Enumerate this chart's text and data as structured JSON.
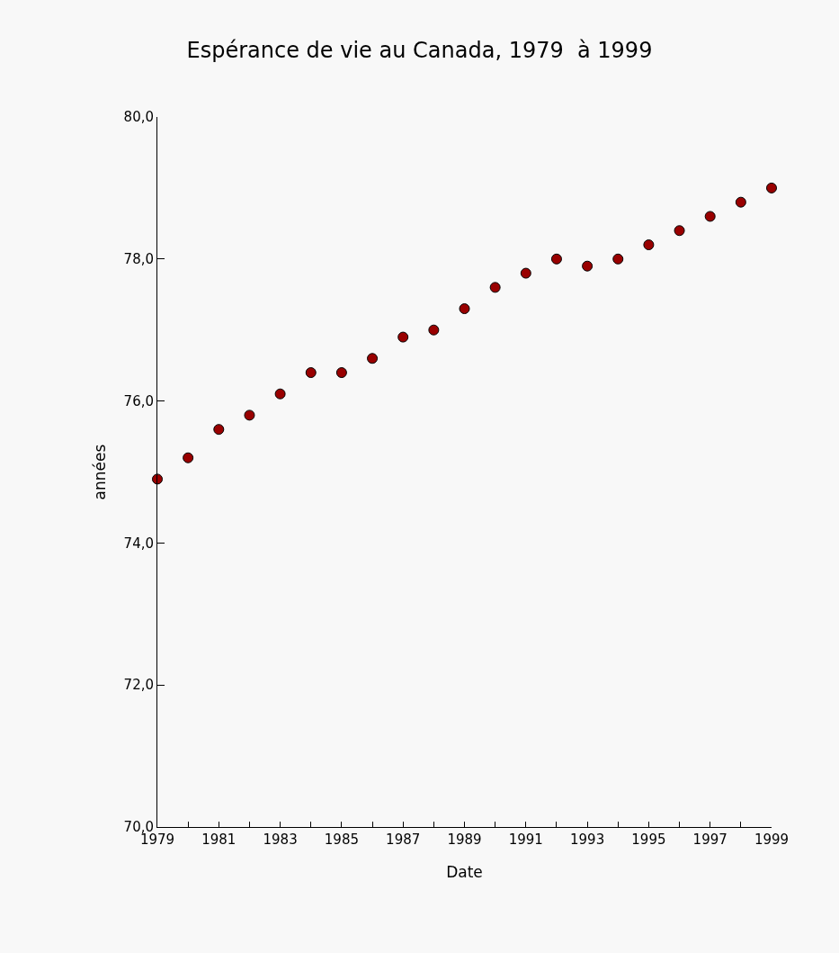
{
  "chart_data": {
    "type": "scatter",
    "title": "Espérance de vie au Canada, 1979  à 1999",
    "xlabel": "Date",
    "ylabel": "années",
    "x": [
      1979,
      1980,
      1981,
      1982,
      1983,
      1984,
      1985,
      1986,
      1987,
      1988,
      1989,
      1990,
      1991,
      1992,
      1993,
      1994,
      1995,
      1996,
      1997,
      1998,
      1999
    ],
    "series": [
      {
        "color": "#990000",
        "values": [
          74.9,
          75.2,
          75.6,
          75.8,
          76.1,
          76.4,
          76.4,
          76.6,
          76.9,
          77.0,
          77.3,
          77.6,
          77.8,
          78.0,
          77.9,
          78.0,
          78.2,
          78.4,
          78.6,
          78.8,
          79.0
        ]
      }
    ],
    "xlim": [
      1979,
      1999
    ],
    "xticks": [
      1979,
      {
        "value": 1980,
        "label": null
      },
      1981,
      {
        "value": 1982,
        "label": null
      },
      1983,
      {
        "value": 1984,
        "label": null
      },
      1985,
      {
        "value": 1986,
        "label": null
      },
      1987,
      {
        "value": 1988,
        "label": null
      },
      1989,
      {
        "value": 1990,
        "label": null
      },
      1991,
      {
        "value": 1992,
        "label": null
      },
      1993,
      {
        "value": 1994,
        "label": null
      },
      1995,
      {
        "value": 1996,
        "label": null
      },
      1997,
      {
        "value": 1998,
        "label": null
      },
      1999
    ],
    "ylim": [
      70,
      80
    ],
    "yticks": [
      {
        "value": 70,
        "label": "70,0"
      },
      {
        "value": 72,
        "label": "72,0"
      },
      {
        "value": 74,
        "label": "74,0"
      },
      {
        "value": 76,
        "label": "76,0"
      },
      {
        "value": 78,
        "label": "78,0"
      },
      {
        "value": 80,
        "label": "80,0"
      }
    ],
    "grid": false,
    "marker": "circle"
  }
}
